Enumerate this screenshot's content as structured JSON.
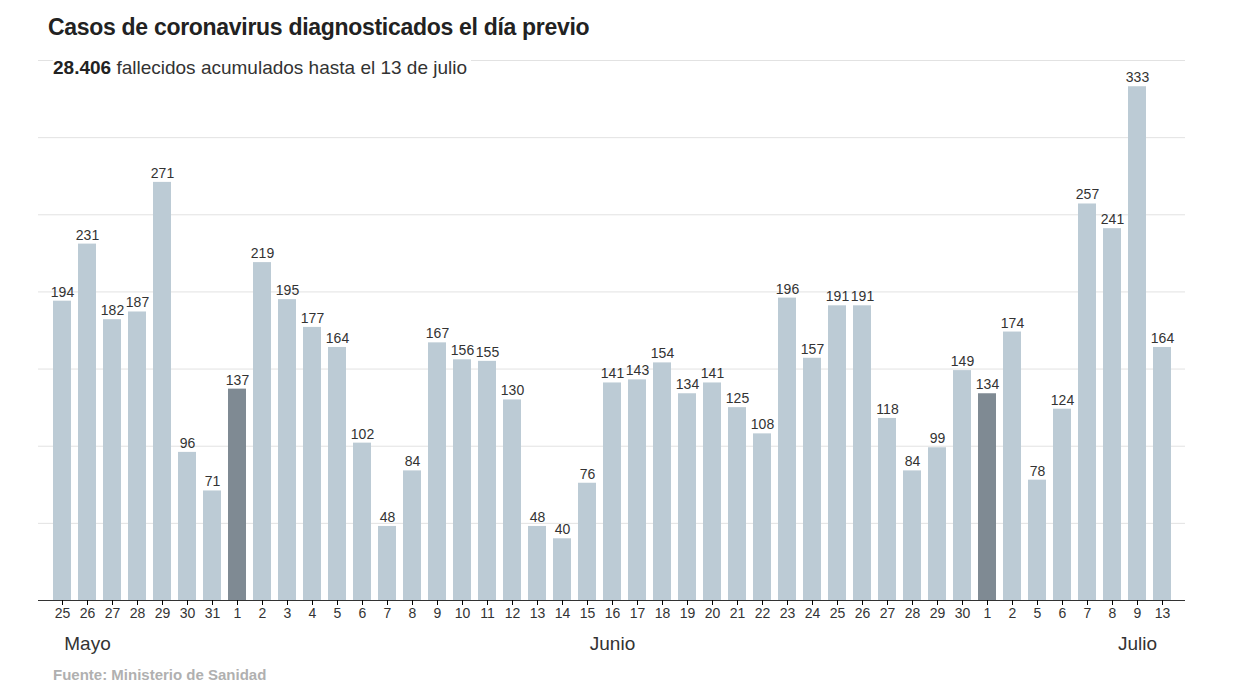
{
  "chart_data": {
    "type": "bar",
    "title": "Casos de coronavirus diagnosticados el día previo",
    "subtitle": "28.406 fallecidos acumulados hasta el 13 de julio",
    "source": "Fuente: Ministerio de Sanidad",
    "categories": [
      "25",
      "26",
      "27",
      "28",
      "29",
      "30",
      "31",
      "1",
      "2",
      "3",
      "4",
      "5",
      "6",
      "7",
      "8",
      "9",
      "10",
      "11",
      "12",
      "13",
      "14",
      "15",
      "16",
      "17",
      "18",
      "19",
      "20",
      "21",
      "22",
      "23",
      "24",
      "25",
      "26",
      "27",
      "28",
      "29",
      "30",
      "1",
      "2",
      "5",
      "6",
      "7",
      "8",
      "9",
      "13"
    ],
    "values": [
      194,
      231,
      182,
      187,
      271,
      96,
      71,
      137,
      219,
      195,
      177,
      164,
      102,
      48,
      84,
      167,
      156,
      155,
      130,
      48,
      40,
      76,
      141,
      143,
      154,
      134,
      141,
      125,
      108,
      196,
      157,
      191,
      191,
      118,
      84,
      99,
      149,
      134,
      174,
      78,
      124,
      257,
      241,
      333,
      164
    ],
    "colors": [
      "#bccbd5",
      "#bccbd5",
      "#bccbd5",
      "#bccbd5",
      "#bccbd5",
      "#bccbd5",
      "#bccbd5",
      "#7f8a93",
      "#bccbd5",
      "#bccbd5",
      "#bccbd5",
      "#bccbd5",
      "#bccbd5",
      "#bccbd5",
      "#bccbd5",
      "#bccbd5",
      "#bccbd5",
      "#bccbd5",
      "#bccbd5",
      "#bccbd5",
      "#bccbd5",
      "#bccbd5",
      "#bccbd5",
      "#bccbd5",
      "#bccbd5",
      "#bccbd5",
      "#bccbd5",
      "#bccbd5",
      "#bccbd5",
      "#bccbd5",
      "#bccbd5",
      "#bccbd5",
      "#bccbd5",
      "#bccbd5",
      "#bccbd5",
      "#bccbd5",
      "#bccbd5",
      "#7f8a93",
      "#bccbd5",
      "#bccbd5",
      "#bccbd5",
      "#bccbd5",
      "#bccbd5",
      "#bccbd5",
      "#bccbd5"
    ],
    "annotations": [
      {
        "text": "Mayo",
        "x": 1
      },
      {
        "text": "Junio",
        "x": 22
      },
      {
        "text": "Julio",
        "x": 43
      }
    ],
    "ylim": [
      0,
      350
    ],
    "yticks": [
      0,
      50,
      100,
      150,
      200,
      250,
      300,
      350
    ],
    "grid": true,
    "data_labels": true,
    "tick_labels": "x"
  }
}
